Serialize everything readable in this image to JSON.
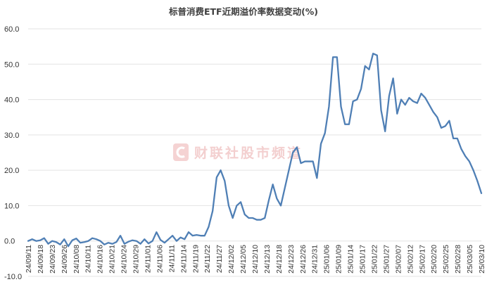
{
  "chart_data": {
    "type": "line",
    "title": "标普消费ETF近期溢价率数据变动(%)",
    "ylim": [
      -10,
      60
    ],
    "yticks": [
      -10,
      0,
      10,
      20,
      30,
      40,
      50,
      60
    ],
    "ytick_labels": [
      "-10.0",
      "0.0",
      "10.0",
      "20.0",
      "30.0",
      "40.0",
      "50.0",
      "60.0"
    ],
    "grid": true,
    "line_color": "#4f7fb5",
    "watermark": "财联社股市频道",
    "x_labels": [
      "24/09/11",
      "24/09/18",
      "24/09/23",
      "24/09/26",
      "24/10/08",
      "24/10/11",
      "24/10/16",
      "24/10/21",
      "24/10/24",
      "24/10/29",
      "24/11/01",
      "24/11/06",
      "24/11/11",
      "24/11/14",
      "24/11/19",
      "24/11/22",
      "24/11/27",
      "24/12/02",
      "24/12/05",
      "24/12/10",
      "24/12/13",
      "24/12/18",
      "24/12/23",
      "24/12/26",
      "24/12/31",
      "25/01/06",
      "25/01/09",
      "25/01/14",
      "25/01/17",
      "25/01/22",
      "25/01/27",
      "25/02/07",
      "25/02/12",
      "25/02/17",
      "25/02/20",
      "25/02/25",
      "25/02/28",
      "25/03/05",
      "25/03/10"
    ],
    "series": [
      {
        "values": [
          0.0,
          0.5,
          0.0,
          0.2,
          0.8,
          -0.8,
          0.0,
          -0.3,
          -1.0,
          0.5,
          -1.5,
          0.2,
          0.7,
          -0.5,
          -0.3,
          0.0,
          0.8,
          0.5,
          0.0,
          -1.0,
          -0.5,
          -0.8,
          -0.3,
          1.5,
          -0.8,
          -0.2,
          0.2,
          0.0,
          -0.8,
          0.5,
          -0.7,
          0.0,
          2.5,
          0.3,
          -0.5,
          0.5,
          1.5,
          0.0,
          1.0,
          0.5,
          2.5,
          1.5,
          1.7,
          1.5,
          1.5,
          4.0,
          8.5,
          18.0,
          20.0,
          17.0,
          10.0,
          6.5,
          10.0,
          11.0,
          7.5,
          6.5,
          6.5,
          6.0,
          6.0,
          6.5,
          11.5,
          16.0,
          12.0,
          10.0,
          15.0,
          20.0,
          25.0,
          26.5,
          22.0,
          22.5,
          22.5,
          22.5,
          17.8,
          27.5,
          30.5,
          38.0,
          52.0,
          52.0,
          38.0,
          33.0,
          33.0,
          39.5,
          40.0,
          43.0,
          49.5,
          48.5,
          53.0,
          52.5,
          37.0,
          31.0,
          41.0,
          46.0,
          36.0,
          40.0,
          38.5,
          40.5,
          39.5,
          39.0,
          41.7,
          40.5,
          38.5,
          36.5,
          35.0,
          32.0,
          32.5,
          34.0,
          29.0,
          29.0,
          26.0,
          24.0,
          22.5,
          20.0,
          17.0,
          13.5
        ]
      }
    ]
  }
}
